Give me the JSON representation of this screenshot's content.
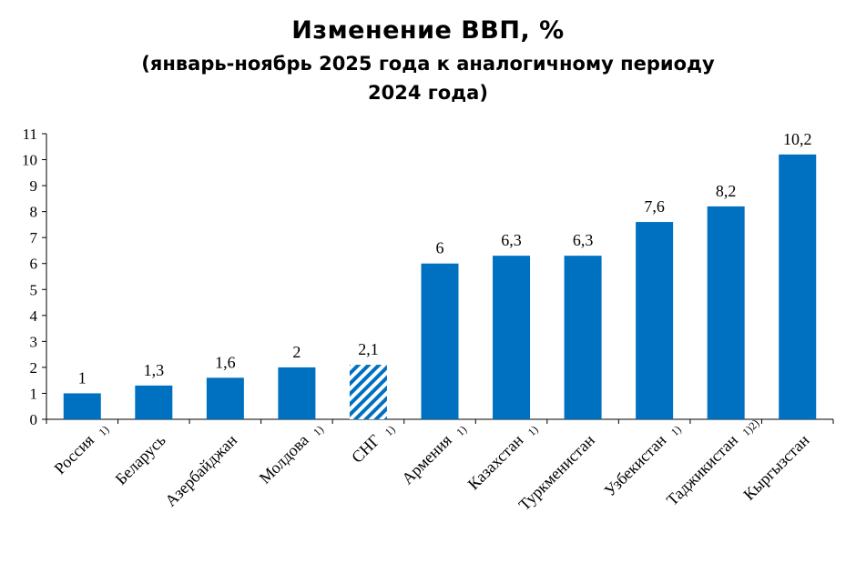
{
  "chart_data": {
    "type": "bar",
    "title": "Изменение ВВП, %",
    "subtitle_line1": "(январь-ноябрь 2025 года к аналогичному периоду",
    "subtitle_line2": "2024 года)",
    "categories": [
      "Россия",
      "Беларусь",
      "Азербайджан",
      "Молдова",
      "СНГ",
      "Армения",
      "Казахстан",
      "Туркменистан",
      "Узбекистан",
      "Таджикистан",
      "Кыргызстан"
    ],
    "footnotes": [
      "1)",
      "",
      "",
      "1)",
      "1)",
      "1)",
      "1)",
      "",
      "1)",
      "1)2)",
      ""
    ],
    "values": [
      1,
      1.3,
      1.6,
      2,
      2.1,
      6,
      6.3,
      6.3,
      7.6,
      8.2,
      10.2
    ],
    "value_labels": [
      "1",
      "1,3",
      "1,6",
      "2",
      "2,1",
      "6",
      "6,3",
      "6,3",
      "7,6",
      "8,2",
      "10,2"
    ],
    "hatched": [
      false,
      false,
      false,
      false,
      true,
      false,
      false,
      false,
      false,
      false,
      false
    ],
    "ylim": [
      0,
      11
    ],
    "yticks": [
      "0",
      "1",
      "2",
      "3",
      "4",
      "5",
      "6",
      "7",
      "8",
      "9",
      "10",
      "11"
    ],
    "bar_color": "#0070C0",
    "grid": false,
    "legend": "none"
  }
}
